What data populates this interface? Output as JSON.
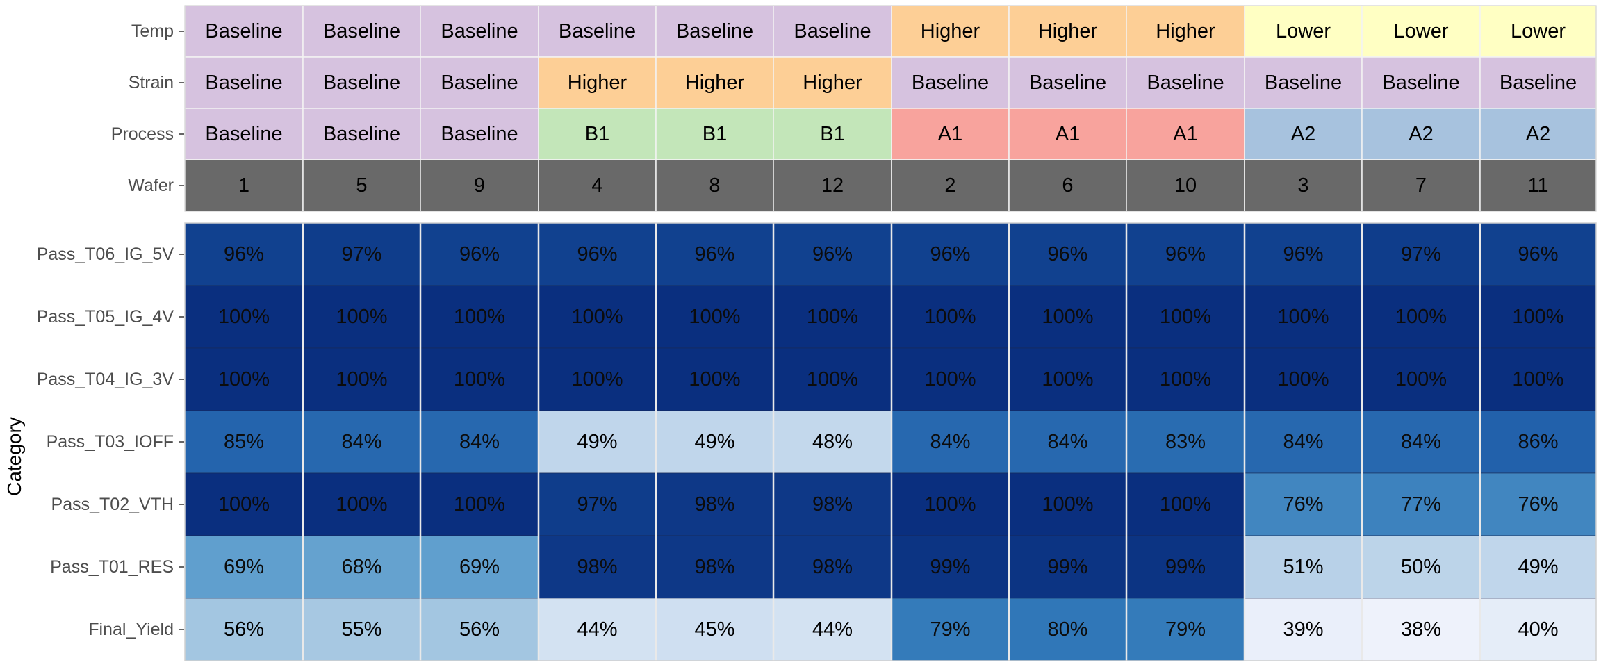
{
  "chart_data": {
    "type": "heatmap",
    "ylabel": "Category",
    "columns": [
      {
        "temp": "Baseline",
        "strain": "Baseline",
        "process": "Baseline",
        "wafer": "1"
      },
      {
        "temp": "Baseline",
        "strain": "Baseline",
        "process": "Baseline",
        "wafer": "5"
      },
      {
        "temp": "Baseline",
        "strain": "Baseline",
        "process": "Baseline",
        "wafer": "9"
      },
      {
        "temp": "Baseline",
        "strain": "Higher",
        "process": "B1",
        "wafer": "4"
      },
      {
        "temp": "Baseline",
        "strain": "Higher",
        "process": "B1",
        "wafer": "8"
      },
      {
        "temp": "Baseline",
        "strain": "Higher",
        "process": "B1",
        "wafer": "12"
      },
      {
        "temp": "Higher",
        "strain": "Baseline",
        "process": "A1",
        "wafer": "2"
      },
      {
        "temp": "Higher",
        "strain": "Baseline",
        "process": "A1",
        "wafer": "6"
      },
      {
        "temp": "Higher",
        "strain": "Baseline",
        "process": "A1",
        "wafer": "10"
      },
      {
        "temp": "Lower",
        "strain": "Baseline",
        "process": "A2",
        "wafer": "3"
      },
      {
        "temp": "Lower",
        "strain": "Baseline",
        "process": "A2",
        "wafer": "7"
      },
      {
        "temp": "Lower",
        "strain": "Baseline",
        "process": "A2",
        "wafer": "11"
      }
    ],
    "annotation_rows": [
      {
        "key": "temp",
        "label": "Temp"
      },
      {
        "key": "strain",
        "label": "Strain"
      },
      {
        "key": "process",
        "label": "Process"
      },
      {
        "key": "wafer",
        "label": "Wafer"
      }
    ],
    "categories": [
      "Pass_T06_IG_5V",
      "Pass_T05_IG_4V",
      "Pass_T04_IG_3V",
      "Pass_T03_IOFF",
      "Pass_T02_VTH",
      "Pass_T01_RES",
      "Final_Yield"
    ],
    "values": [
      [
        96,
        97,
        96,
        96,
        96,
        96,
        96,
        96,
        96,
        96,
        97,
        96
      ],
      [
        100,
        100,
        100,
        100,
        100,
        100,
        100,
        100,
        100,
        100,
        100,
        100
      ],
      [
        100,
        100,
        100,
        100,
        100,
        100,
        100,
        100,
        100,
        100,
        100,
        100
      ],
      [
        85,
        84,
        84,
        49,
        49,
        48,
        84,
        84,
        83,
        84,
        84,
        86
      ],
      [
        100,
        100,
        100,
        97,
        98,
        98,
        100,
        100,
        100,
        76,
        77,
        76
      ],
      [
        69,
        68,
        69,
        98,
        98,
        98,
        99,
        99,
        99,
        51,
        50,
        49
      ],
      [
        56,
        55,
        56,
        44,
        45,
        44,
        79,
        80,
        79,
        39,
        38,
        40
      ]
    ],
    "value_suffix": "%",
    "annotation_colors": {
      "Baseline": "#d6c2df",
      "Higher": "#fdcf96",
      "Lower": "#ffffc3",
      "B1": "#c3e6b9",
      "A1": "#f8a39d",
      "A2": "#a7c2de",
      "wafer": "#696969"
    },
    "color_scale": [
      [
        38,
        "#eef2fb"
      ],
      [
        45,
        "#cfdff1"
      ],
      [
        52,
        "#b4cfe6"
      ],
      [
        60,
        "#91bcdb"
      ],
      [
        70,
        "#5a9ccc"
      ],
      [
        80,
        "#3077b8"
      ],
      [
        88,
        "#1d59a6"
      ],
      [
        96,
        "#11418f"
      ],
      [
        100,
        "#0a2f7f"
      ]
    ]
  }
}
